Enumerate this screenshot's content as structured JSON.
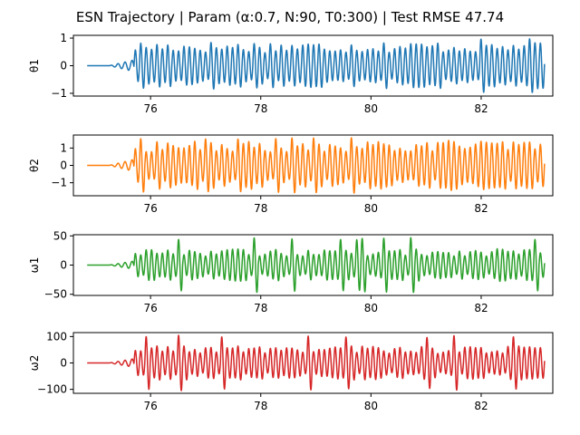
{
  "figure": {
    "title": "ESN Trajectory | Param (α:0.7, N:90, T0:300) | Test RMSE 47.74"
  },
  "chart_data": [
    {
      "type": "line",
      "ylabel": "θ1",
      "xlim": [
        74.6,
        83.3
      ],
      "ylim": [
        -1.1,
        1.1
      ],
      "x_ticks": [
        "76",
        "78",
        "80",
        "82"
      ],
      "y_ticks": [
        "1",
        "0",
        "−1"
      ],
      "color": "#1f77b4",
      "signal": {
        "x_start": 74.85,
        "x_end": 83.15,
        "flat_until": 75.25,
        "settle_until": 75.7,
        "steady_amplitude": 0.85,
        "peak_amplitude": 1.02,
        "period": 0.098
      }
    },
    {
      "type": "line",
      "ylabel": "θ2",
      "xlim": [
        74.6,
        83.3
      ],
      "ylim": [
        -1.75,
        1.75
      ],
      "x_ticks": [
        "76",
        "78",
        "80",
        "82"
      ],
      "y_ticks": [
        "1",
        "0",
        "−1"
      ],
      "color": "#ff7f0e",
      "signal": {
        "x_start": 74.85,
        "x_end": 83.15,
        "flat_until": 75.25,
        "settle_until": 75.7,
        "steady_amplitude": 1.4,
        "peak_amplitude": 1.6,
        "period": 0.098
      }
    },
    {
      "type": "line",
      "ylabel": "ω1",
      "xlim": [
        74.6,
        83.3
      ],
      "ylim": [
        -52,
        52
      ],
      "x_ticks": [
        "76",
        "78",
        "80",
        "82"
      ],
      "y_ticks": [
        "50",
        "0",
        "−50"
      ],
      "color": "#2ca02c",
      "signal": {
        "x_start": 74.85,
        "x_end": 83.15,
        "flat_until": 75.25,
        "settle_until": 75.7,
        "steady_amplitude": 28,
        "peak_amplitude": 48,
        "period": 0.098
      }
    },
    {
      "type": "line",
      "ylabel": "ω2",
      "xlim": [
        74.6,
        83.3
      ],
      "ylim": [
        -115,
        115
      ],
      "x_ticks": [
        "76",
        "78",
        "80",
        "82"
      ],
      "y_ticks": [
        "100",
        "0",
        "−100"
      ],
      "color": "#d62728",
      "signal": {
        "x_start": 74.85,
        "x_end": 83.15,
        "flat_until": 75.25,
        "settle_until": 75.7,
        "steady_amplitude": 65,
        "peak_amplitude": 105,
        "period": 0.098
      }
    }
  ]
}
